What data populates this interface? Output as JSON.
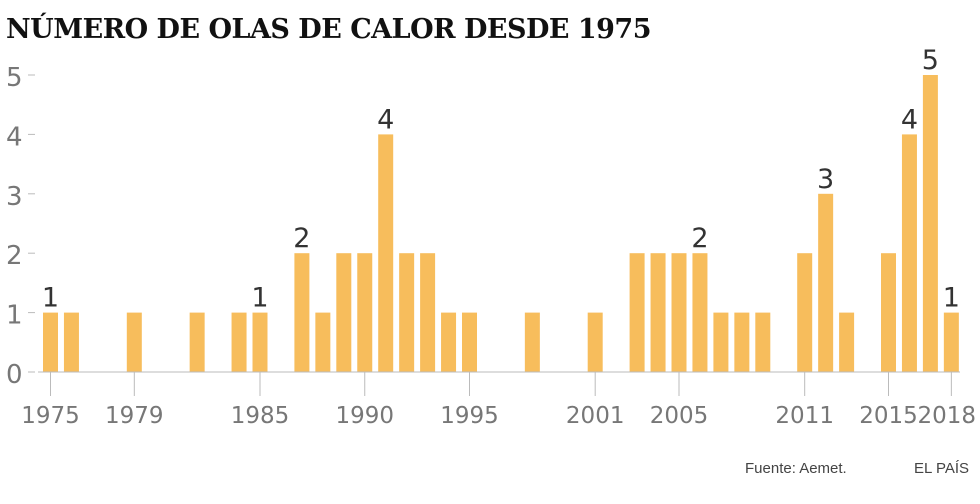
{
  "chart_data": {
    "type": "bar",
    "title": "NÚMERO DE OLAS DE CALOR DESDE 1975",
    "xlabel": "",
    "ylabel": "",
    "x": [
      1975,
      1976,
      1977,
      1978,
      1979,
      1980,
      1981,
      1982,
      1983,
      1984,
      1985,
      1986,
      1987,
      1988,
      1989,
      1990,
      1991,
      1992,
      1993,
      1994,
      1995,
      1996,
      1997,
      1998,
      1999,
      2000,
      2001,
      2002,
      2003,
      2004,
      2005,
      2006,
      2007,
      2008,
      2009,
      2010,
      2011,
      2012,
      2013,
      2014,
      2015,
      2016,
      2017,
      2018
    ],
    "values": [
      1,
      1,
      0,
      0,
      1,
      0,
      0,
      1,
      0,
      1,
      1,
      0,
      2,
      1,
      2,
      2,
      4,
      2,
      2,
      1,
      1,
      0,
      0,
      1,
      0,
      0,
      1,
      0,
      2,
      2,
      2,
      2,
      1,
      1,
      1,
      0,
      2,
      3,
      1,
      0,
      2,
      4,
      5,
      1
    ],
    "xticks": [
      "1975",
      "1979",
      "1985",
      "1990",
      "1995",
      "2001",
      "2005",
      "2011",
      "2015",
      "2018"
    ],
    "yticks": [
      "0",
      "1",
      "2",
      "3",
      "4",
      "5"
    ],
    "ylim": [
      0,
      5
    ],
    "grid": false,
    "bar_color": "#f7bd5c",
    "axis_color": "#bbbbbb",
    "annotations": [
      {
        "x": 1975,
        "label": "1"
      },
      {
        "x": 1985,
        "label": "1"
      },
      {
        "x": 1987,
        "label": "2"
      },
      {
        "x": 1991,
        "label": "4"
      },
      {
        "x": 2006,
        "label": "2"
      },
      {
        "x": 2012,
        "label": "3"
      },
      {
        "x": 2016,
        "label": "4"
      },
      {
        "x": 2017,
        "label": "5"
      },
      {
        "x": 2018,
        "label": "1"
      }
    ]
  },
  "footer": {
    "source": "Fuente: Aemet.",
    "brand": "EL PAÍS"
  }
}
